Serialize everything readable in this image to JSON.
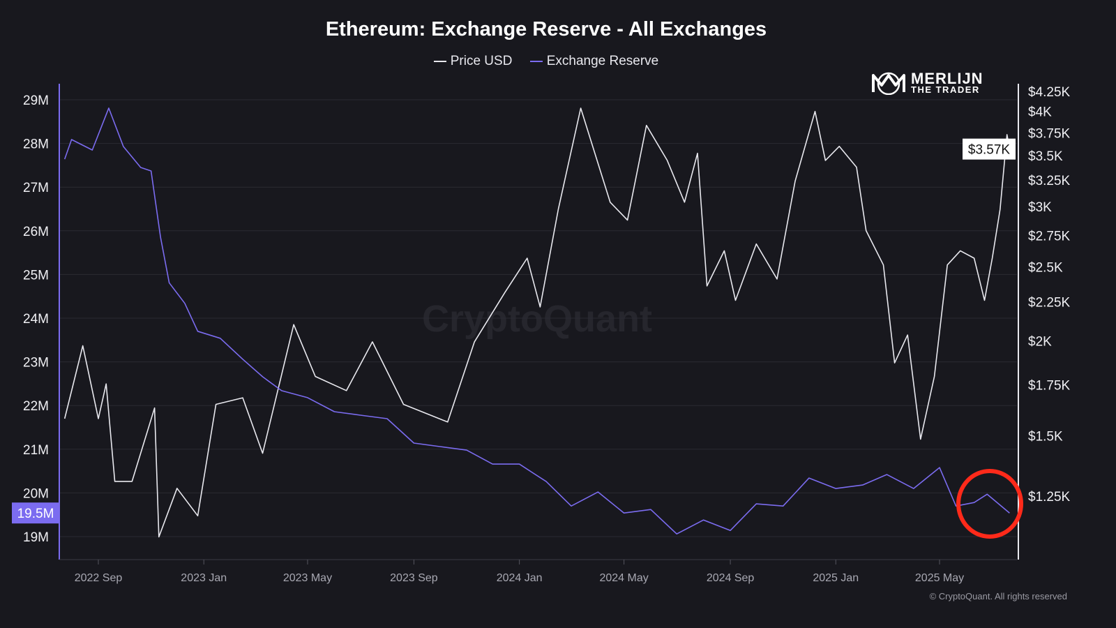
{
  "chart_data": {
    "type": "line",
    "title": "Ethereum: Exchange Reserve - All Exchanges",
    "legend_position": "top-center",
    "grid": true,
    "watermark": "CryptoQuant",
    "logo": "MERLIJN THE TRADER",
    "copyright": "© CryptoQuant. All rights reserved",
    "x_ticks": [
      {
        "date": "2022-09-01",
        "label": "2022 Sep"
      },
      {
        "date": "2023-01-01",
        "label": "2023 Jan"
      },
      {
        "date": "2023-05-01",
        "label": "2023 May"
      },
      {
        "date": "2023-09-01",
        "label": "2023 Sep"
      },
      {
        "date": "2024-01-01",
        "label": "2024 Jan"
      },
      {
        "date": "2024-05-01",
        "label": "2024 May"
      },
      {
        "date": "2024-09-01",
        "label": "2024 Sep"
      },
      {
        "date": "2025-01-01",
        "label": "2025 Jan"
      },
      {
        "date": "2025-05-01",
        "label": "2025 May"
      }
    ],
    "x_range": [
      "2022-07-24",
      "2025-07-21"
    ],
    "left_axis": {
      "series": "Exchange Reserve",
      "scale": "linear",
      "range": [
        18.5,
        29.4
      ],
      "ticks": [
        {
          "v": 29,
          "label": "29M"
        },
        {
          "v": 28,
          "label": "28M"
        },
        {
          "v": 27,
          "label": "27M"
        },
        {
          "v": 26,
          "label": "26M"
        },
        {
          "v": 25,
          "label": "25M"
        },
        {
          "v": 24,
          "label": "24M"
        },
        {
          "v": 23,
          "label": "23M"
        },
        {
          "v": 22,
          "label": "22M"
        },
        {
          "v": 21,
          "label": "21M"
        },
        {
          "v": 20,
          "label": "20M"
        },
        {
          "v": 19,
          "label": "19M"
        }
      ],
      "current_label": "19.5M",
      "current_value": 19.54
    },
    "right_axis": {
      "series": "Price USD",
      "scale": "log",
      "range": [
        1020,
        4520
      ],
      "ticks": [
        {
          "v": 4250,
          "label": "$4.25K"
        },
        {
          "v": 4000,
          "label": "$4K"
        },
        {
          "v": 3750,
          "label": "$3.75K"
        },
        {
          "v": 3500,
          "label": "$3.5K"
        },
        {
          "v": 3250,
          "label": "$3.25K"
        },
        {
          "v": 3000,
          "label": "$3K"
        },
        {
          "v": 2750,
          "label": "$2.75K"
        },
        {
          "v": 2500,
          "label": "$2.5K"
        },
        {
          "v": 2250,
          "label": "$2.25K"
        },
        {
          "v": 2000,
          "label": "$2K"
        },
        {
          "v": 1750,
          "label": "$1.75K"
        },
        {
          "v": 1500,
          "label": "$1.5K"
        },
        {
          "v": 1250,
          "label": "$1.25K"
        }
      ],
      "current_label": "$3.57K",
      "current_value": 3570
    },
    "series": [
      {
        "name": "Price USD",
        "color": "#e9e9ef",
        "axis": "right",
        "points": [
          [
            "2022-07-24",
            1580
          ],
          [
            "2022-08-14",
            1970
          ],
          [
            "2022-09-01",
            1580
          ],
          [
            "2022-09-10",
            1755
          ],
          [
            "2022-09-20",
            1307
          ],
          [
            "2022-10-10",
            1307
          ],
          [
            "2022-11-05",
            1632
          ],
          [
            "2022-11-10",
            1105
          ],
          [
            "2022-12-01",
            1280
          ],
          [
            "2022-12-25",
            1178
          ],
          [
            "2023-01-15",
            1650
          ],
          [
            "2023-02-15",
            1683
          ],
          [
            "2023-03-10",
            1423
          ],
          [
            "2023-04-15",
            2100
          ],
          [
            "2023-05-10",
            1795
          ],
          [
            "2023-06-15",
            1720
          ],
          [
            "2023-07-15",
            1993
          ],
          [
            "2023-08-20",
            1650
          ],
          [
            "2023-10-10",
            1564
          ],
          [
            "2023-11-10",
            1993
          ],
          [
            "2023-12-15",
            2312
          ],
          [
            "2024-01-10",
            2567
          ],
          [
            "2024-01-25",
            2215
          ],
          [
            "2024-02-15",
            2975
          ],
          [
            "2024-03-12",
            4040
          ],
          [
            "2024-04-15",
            3040
          ],
          [
            "2024-05-05",
            2880
          ],
          [
            "2024-05-27",
            3835
          ],
          [
            "2024-06-20",
            3450
          ],
          [
            "2024-07-10",
            3040
          ],
          [
            "2024-07-25",
            3525
          ],
          [
            "2024-08-05",
            2360
          ],
          [
            "2024-08-25",
            2625
          ],
          [
            "2024-09-07",
            2260
          ],
          [
            "2024-10-01",
            2680
          ],
          [
            "2024-10-25",
            2410
          ],
          [
            "2024-11-15",
            3240
          ],
          [
            "2024-12-08",
            4000
          ],
          [
            "2024-12-20",
            3450
          ],
          [
            "2025-01-05",
            3600
          ],
          [
            "2025-01-25",
            3380
          ],
          [
            "2025-02-05",
            2790
          ],
          [
            "2025-02-25",
            2515
          ],
          [
            "2025-03-10",
            1870
          ],
          [
            "2025-03-25",
            2035
          ],
          [
            "2025-04-09",
            1485
          ],
          [
            "2025-04-25",
            1795
          ],
          [
            "2025-05-10",
            2515
          ],
          [
            "2025-05-25",
            2625
          ],
          [
            "2025-06-10",
            2567
          ],
          [
            "2025-06-22",
            2260
          ],
          [
            "2025-07-01",
            2567
          ],
          [
            "2025-07-10",
            2975
          ],
          [
            "2025-07-18",
            3730
          ],
          [
            "2025-07-21",
            3570
          ]
        ]
      },
      {
        "name": "Exchange Reserve",
        "color": "#7b6cf0",
        "axis": "left",
        "points": [
          [
            "2022-07-24",
            27.64
          ],
          [
            "2022-08-01",
            28.09
          ],
          [
            "2022-08-25",
            27.85
          ],
          [
            "2022-09-13",
            28.81
          ],
          [
            "2022-09-30",
            27.93
          ],
          [
            "2022-10-20",
            27.45
          ],
          [
            "2022-11-01",
            27.37
          ],
          [
            "2022-11-12",
            25.85
          ],
          [
            "2022-11-22",
            24.81
          ],
          [
            "2022-12-10",
            24.34
          ],
          [
            "2022-12-25",
            23.7
          ],
          [
            "2023-01-20",
            23.54
          ],
          [
            "2023-02-15",
            23.06
          ],
          [
            "2023-03-10",
            22.66
          ],
          [
            "2023-04-01",
            22.34
          ],
          [
            "2023-05-01",
            22.18
          ],
          [
            "2023-06-01",
            21.86
          ],
          [
            "2023-07-01",
            21.78
          ],
          [
            "2023-08-01",
            21.7
          ],
          [
            "2023-09-01",
            21.14
          ],
          [
            "2023-10-01",
            21.06
          ],
          [
            "2023-11-01",
            20.98
          ],
          [
            "2023-12-01",
            20.66
          ],
          [
            "2024-01-01",
            20.66
          ],
          [
            "2024-02-01",
            20.26
          ],
          [
            "2024-03-01",
            19.7
          ],
          [
            "2024-04-01",
            20.02
          ],
          [
            "2024-05-01",
            19.54
          ],
          [
            "2024-06-01",
            19.62
          ],
          [
            "2024-07-01",
            19.06
          ],
          [
            "2024-08-01",
            19.38
          ],
          [
            "2024-09-01",
            19.14
          ],
          [
            "2024-10-01",
            19.75
          ],
          [
            "2024-11-01",
            19.7
          ],
          [
            "2024-12-01",
            20.34
          ],
          [
            "2025-01-01",
            20.1
          ],
          [
            "2025-02-01",
            20.18
          ],
          [
            "2025-03-01",
            20.42
          ],
          [
            "2025-04-01",
            20.1
          ],
          [
            "2025-05-01",
            20.58
          ],
          [
            "2025-05-20",
            19.7
          ],
          [
            "2025-06-10",
            19.78
          ],
          [
            "2025-06-25",
            19.97
          ],
          [
            "2025-07-21",
            19.54
          ]
        ]
      }
    ],
    "annotation": {
      "type": "circle",
      "color": "#ff2a1a",
      "around": "Exchange Reserve",
      "from": "2025-05-20",
      "to": "2025-07-21"
    }
  }
}
